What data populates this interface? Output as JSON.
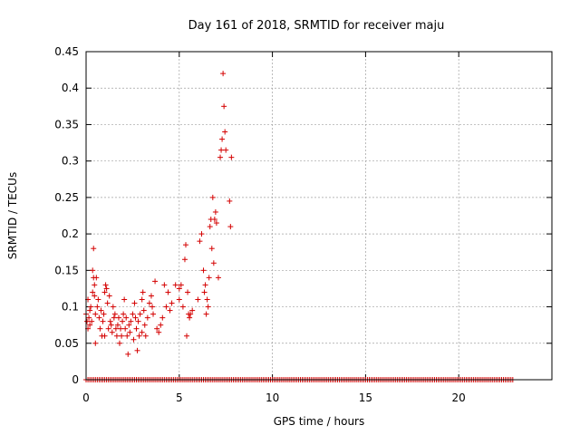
{
  "chart_data": {
    "type": "scatter",
    "title": "Day 161 of 2018, SRMTID for receiver maju",
    "xlabel": "GPS time / hours",
    "ylabel": "SRMTID / TECUs",
    "xlim": [
      0,
      25
    ],
    "ylim": [
      0,
      0.45
    ],
    "grid": true,
    "marker": "+",
    "color": "#d40000",
    "x_ticks": [
      0,
      5,
      10,
      15,
      20
    ],
    "x_tick_labels": [
      "0",
      "5",
      "10",
      "15",
      "20"
    ],
    "y_ticks": [
      0,
      0.05,
      0.1,
      0.15,
      0.2,
      0.25,
      0.3,
      0.35,
      0.4,
      0.45
    ],
    "y_tick_labels": [
      "0",
      "0.05",
      "0.1",
      "0.15",
      "0.2",
      "0.25",
      "0.3",
      "0.35",
      "0.4",
      "0.45"
    ],
    "zero_baseline": {
      "y": 0,
      "x_start": 0,
      "x_end": 22.9,
      "step": 0.1
    },
    "series": [
      {
        "name": "SRMTID",
        "points": [
          [
            0.0,
            0.09
          ],
          [
            0.05,
            0.08
          ],
          [
            0.1,
            0.11
          ],
          [
            0.1,
            0.07
          ],
          [
            0.15,
            0.085
          ],
          [
            0.2,
            0.095
          ],
          [
            0.2,
            0.075
          ],
          [
            0.25,
            0.1
          ],
          [
            0.3,
            0.08
          ],
          [
            0.35,
            0.15
          ],
          [
            0.35,
            0.12
          ],
          [
            0.4,
            0.14
          ],
          [
            0.4,
            0.18
          ],
          [
            0.45,
            0.13
          ],
          [
            0.45,
            0.115
          ],
          [
            0.5,
            0.09
          ],
          [
            0.5,
            0.05
          ],
          [
            0.55,
            0.14
          ],
          [
            0.6,
            0.1
          ],
          [
            0.65,
            0.11
          ],
          [
            0.7,
            0.085
          ],
          [
            0.75,
            0.07
          ],
          [
            0.8,
            0.095
          ],
          [
            0.85,
            0.06
          ],
          [
            0.9,
            0.08
          ],
          [
            0.95,
            0.09
          ],
          [
            1.0,
            0.12
          ],
          [
            1.0,
            0.06
          ],
          [
            1.05,
            0.13
          ],
          [
            1.1,
            0.125
          ],
          [
            1.15,
            0.105
          ],
          [
            1.2,
            0.07
          ],
          [
            1.25,
            0.115
          ],
          [
            1.3,
            0.08
          ],
          [
            1.35,
            0.075
          ],
          [
            1.4,
            0.065
          ],
          [
            1.45,
            0.1
          ],
          [
            1.5,
            0.085
          ],
          [
            1.55,
            0.09
          ],
          [
            1.6,
            0.07
          ],
          [
            1.65,
            0.06
          ],
          [
            1.7,
            0.075
          ],
          [
            1.75,
            0.085
          ],
          [
            1.8,
            0.05
          ],
          [
            1.85,
            0.07
          ],
          [
            1.9,
            0.06
          ],
          [
            1.95,
            0.08
          ],
          [
            2.0,
            0.09
          ],
          [
            2.05,
            0.11
          ],
          [
            2.1,
            0.07
          ],
          [
            2.15,
            0.085
          ],
          [
            2.2,
            0.06
          ],
          [
            2.25,
            0.035
          ],
          [
            2.3,
            0.075
          ],
          [
            2.35,
            0.065
          ],
          [
            2.4,
            0.08
          ],
          [
            2.5,
            0.09
          ],
          [
            2.55,
            0.055
          ],
          [
            2.6,
            0.105
          ],
          [
            2.65,
            0.085
          ],
          [
            2.7,
            0.07
          ],
          [
            2.75,
            0.04
          ],
          [
            2.8,
            0.08
          ],
          [
            2.85,
            0.06
          ],
          [
            2.9,
            0.09
          ],
          [
            3.0,
            0.11
          ],
          [
            3.0,
            0.065
          ],
          [
            3.05,
            0.12
          ],
          [
            3.1,
            0.095
          ],
          [
            3.15,
            0.075
          ],
          [
            3.2,
            0.06
          ],
          [
            3.3,
            0.085
          ],
          [
            3.4,
            0.105
          ],
          [
            3.5,
            0.115
          ],
          [
            3.55,
            0.1
          ],
          [
            3.6,
            0.09
          ],
          [
            3.7,
            0.135
          ],
          [
            3.8,
            0.07
          ],
          [
            3.9,
            0.065
          ],
          [
            4.0,
            0.075
          ],
          [
            4.1,
            0.085
          ],
          [
            4.2,
            0.13
          ],
          [
            4.3,
            0.1
          ],
          [
            4.4,
            0.12
          ],
          [
            4.5,
            0.095
          ],
          [
            4.6,
            0.105
          ],
          [
            4.8,
            0.13
          ],
          [
            5.0,
            0.11
          ],
          [
            5.0,
            0.125
          ],
          [
            5.1,
            0.13
          ],
          [
            5.2,
            0.1
          ],
          [
            5.3,
            0.165
          ],
          [
            5.35,
            0.185
          ],
          [
            5.4,
            0.06
          ],
          [
            5.45,
            0.12
          ],
          [
            5.5,
            0.09
          ],
          [
            5.55,
            0.085
          ],
          [
            5.6,
            0.09
          ],
          [
            5.7,
            0.095
          ],
          [
            6.0,
            0.11
          ],
          [
            6.1,
            0.19
          ],
          [
            6.2,
            0.2
          ],
          [
            6.3,
            0.15
          ],
          [
            6.35,
            0.12
          ],
          [
            6.4,
            0.13
          ],
          [
            6.45,
            0.09
          ],
          [
            6.5,
            0.11
          ],
          [
            6.55,
            0.1
          ],
          [
            6.6,
            0.14
          ],
          [
            6.65,
            0.21
          ],
          [
            6.7,
            0.22
          ],
          [
            6.75,
            0.18
          ],
          [
            6.8,
            0.25
          ],
          [
            6.85,
            0.16
          ],
          [
            6.9,
            0.22
          ],
          [
            6.95,
            0.23
          ],
          [
            7.0,
            0.215
          ],
          [
            7.1,
            0.14
          ],
          [
            7.2,
            0.305
          ],
          [
            7.25,
            0.315
          ],
          [
            7.3,
            0.33
          ],
          [
            7.35,
            0.42
          ],
          [
            7.4,
            0.375
          ],
          [
            7.45,
            0.34
          ],
          [
            7.5,
            0.315
          ],
          [
            7.7,
            0.245
          ],
          [
            7.75,
            0.21
          ],
          [
            7.8,
            0.305
          ]
        ]
      }
    ]
  }
}
